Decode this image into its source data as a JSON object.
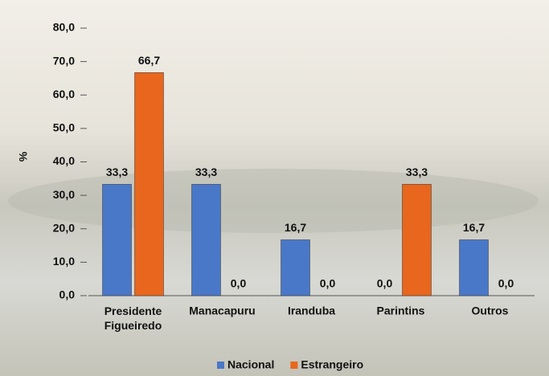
{
  "chart_data": {
    "type": "bar",
    "y_label": "%",
    "categories": [
      "Presidente Figueiredo",
      "Manacapuru",
      "Iranduba",
      "Parintins",
      "Outros"
    ],
    "series": [
      {
        "name": "Nacional",
        "color": "#4a78c8",
        "values": [
          33.3,
          33.3,
          16.7,
          0,
          16.7
        ],
        "value_labels": [
          "33,3",
          "33,3",
          "16,7",
          "0,0",
          "16,7"
        ]
      },
      {
        "name": "Estrangeiro",
        "color": "#e8661e",
        "values": [
          66.7,
          0,
          0,
          33.3,
          0
        ],
        "value_labels": [
          "66,7",
          "0,0",
          "0,0",
          "33,3",
          "0,0"
        ]
      }
    ],
    "ylim": [
      0,
      80
    ],
    "yticks": [
      {
        "value": 0,
        "label": "0,0"
      },
      {
        "value": 10,
        "label": "10,0"
      },
      {
        "value": 20,
        "label": "20,0"
      },
      {
        "value": 30,
        "label": "30,0"
      },
      {
        "value": 40,
        "label": "40,0"
      },
      {
        "value": 50,
        "label": "50,0"
      },
      {
        "value": 60,
        "label": "60,0"
      },
      {
        "value": 70,
        "label": "70,0"
      },
      {
        "value": 80,
        "label": "80,0"
      }
    ]
  }
}
